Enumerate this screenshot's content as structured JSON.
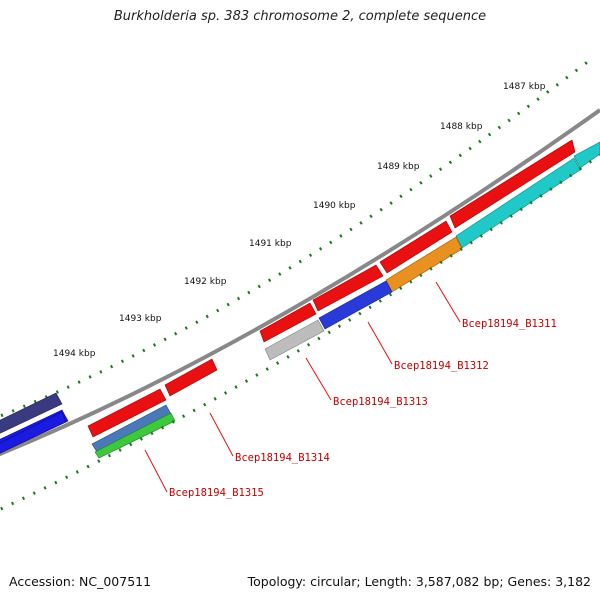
{
  "title": "Burkholderia sp. 383 chromosome 2, complete sequence",
  "footer": {
    "accession": "Accession: NC_007511",
    "summary": "Topology: circular; Length: 3,587,082 bp; Genes: 3,182"
  },
  "scale": {
    "labels": [
      "1487 kbp",
      "1488 kbp",
      "1489 kbp",
      "1490 kbp",
      "1491 kbp",
      "1492 kbp",
      "1493 kbp",
      "1494 kbp"
    ]
  },
  "genes": [
    {
      "name": "Bcep18194_B1311",
      "color": "#e8a020"
    },
    {
      "name": "Bcep18194_B1312",
      "color": "#2a3ad8"
    },
    {
      "name": "Bcep18194_B1313",
      "color": "#b8b8b8"
    },
    {
      "name": "Bcep18194_B1314",
      "color": "#4a78b8"
    },
    {
      "name": "Bcep18194_B1315",
      "color": "#3ec83e"
    }
  ],
  "colors": {
    "cds": "#e81010",
    "backbone": "#8a8a8a",
    "tick": "#1a7a1a",
    "label": "#c00000",
    "cyan": "#20c8c8",
    "navy": "#3a3a80",
    "blue": "#1a1ae0"
  }
}
